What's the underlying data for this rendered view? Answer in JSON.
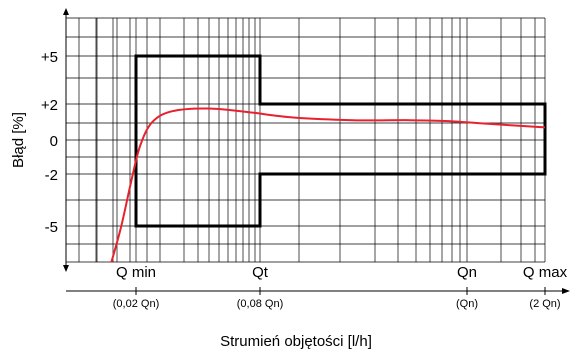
{
  "chart_data": {
    "type": "line",
    "title": "",
    "ylabel": "Błąd [%]",
    "xlabel": "Strumień objętości [l/h]",
    "yticks": [
      "+5",
      "+2",
      "0",
      "-2",
      "-5"
    ],
    "ytick_values": [
      5,
      2,
      0,
      -2,
      -5
    ],
    "ylim": [
      -8.5,
      8.5
    ],
    "x_markers": [
      {
        "label": "Q min",
        "sub": "(0,02 Qn)",
        "value": 0.02
      },
      {
        "label": "Qt",
        "sub": "(0,08 Qn)",
        "value": 0.08
      },
      {
        "label": "Qn",
        "sub": "(Qn)",
        "value": 1
      },
      {
        "label": "Q max",
        "sub": "(2 Qn)",
        "value": 2
      }
    ],
    "x_scale": "log",
    "xlim": [
      0.008,
      2
    ],
    "grid": true,
    "tolerance_limits": [
      {
        "x": [
          0.02,
          0.08
        ],
        "upper": 5,
        "lower": -5
      },
      {
        "x": [
          0.08,
          2
        ],
        "upper": 2,
        "lower": -2
      }
    ],
    "series": [
      {
        "color": "#e8212e",
        "points": [
          [
            0.0145,
            -8.5
          ],
          [
            0.0165,
            -5
          ],
          [
            0.019,
            -2.2
          ],
          [
            0.021,
            -0.3
          ],
          [
            0.024,
            1.0
          ],
          [
            0.03,
            1.6
          ],
          [
            0.045,
            1.75
          ],
          [
            0.07,
            1.55
          ],
          [
            0.12,
            1.25
          ],
          [
            0.25,
            1.1
          ],
          [
            0.5,
            1.1
          ],
          [
            0.8,
            1.05
          ],
          [
            1.2,
            0.9
          ],
          [
            2.0,
            0.7
          ]
        ]
      }
    ]
  }
}
